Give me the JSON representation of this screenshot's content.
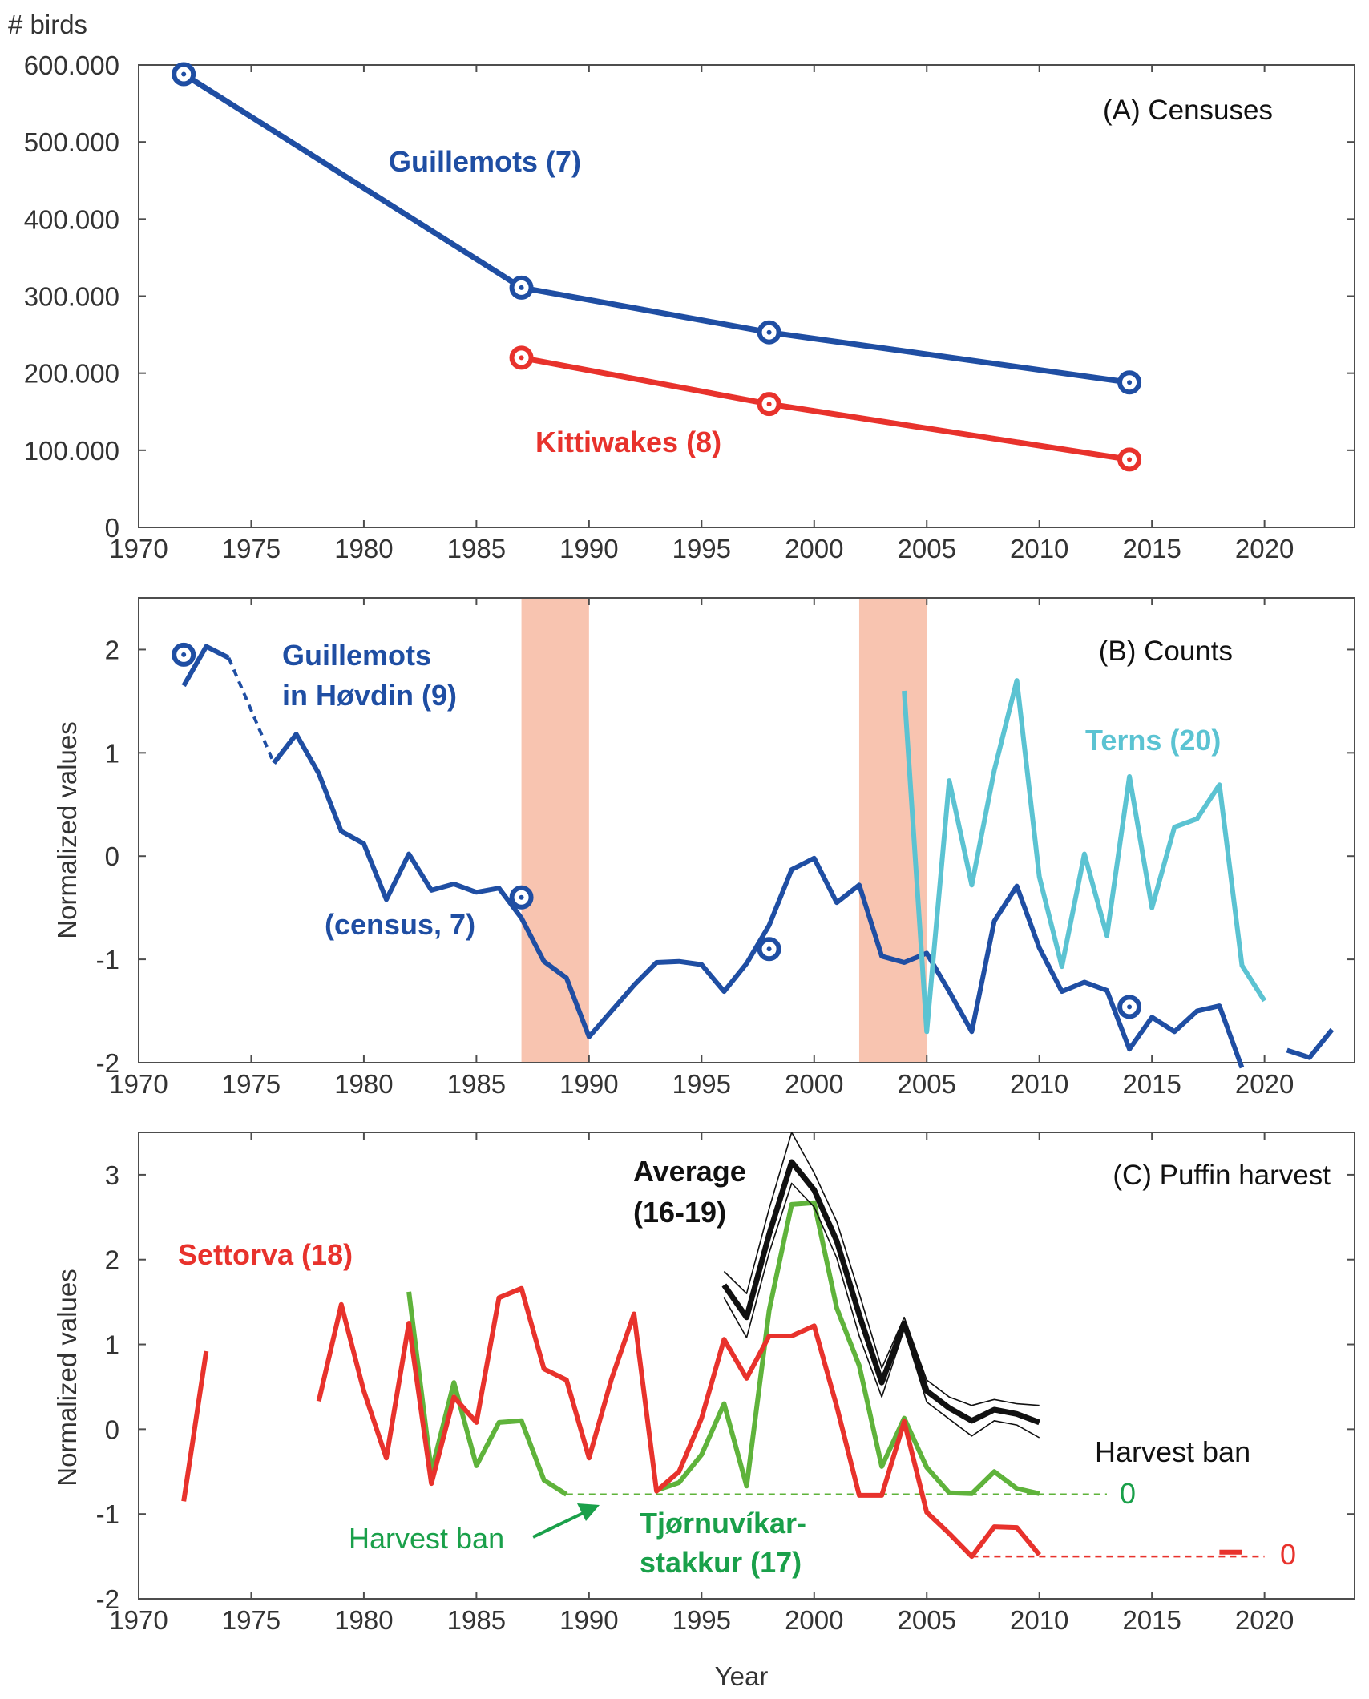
{
  "colors": {
    "guillemots": "#1f4ea3",
    "kittiwakes": "#e8322c",
    "terns": "#5bc3d2",
    "tjornuvikarstakkur": "#5fb33b",
    "settorva": "#e8322c",
    "average": "#111111",
    "ban_zone": "#f8c4b0",
    "tjorn_text": "#1aa04a",
    "ban_arrow": "#1aa04a"
  },
  "chart_data": [
    {
      "type": "line",
      "panel": "A",
      "title": "(A) Censuses",
      "ylabel": "# birds",
      "xlabel": "",
      "xlim": [
        1970,
        2024
      ],
      "ylim": [
        0,
        600000
      ],
      "x_ticks": [
        "1970",
        "1975",
        "1980",
        "1985",
        "1990",
        "1995",
        "2000",
        "2005",
        "2010",
        "2015",
        "2020"
      ],
      "y_ticks": [
        "0",
        "100.000",
        "200.000",
        "300.000",
        "400.000",
        "500.000",
        "600.000"
      ],
      "series": [
        {
          "name": "Guillemots (7)",
          "color_key": "guillemots",
          "x": [
            1972,
            1987,
            1998,
            2014
          ],
          "y": [
            588000,
            311000,
            253000,
            188000
          ],
          "markers": true
        },
        {
          "name": "Kittiwakes (8)",
          "color_key": "kittiwakes",
          "x": [
            1987,
            1998,
            2014
          ],
          "y": [
            220000,
            160000,
            88000
          ],
          "markers": true
        }
      ]
    },
    {
      "type": "line",
      "panel": "B",
      "title": "(B) Counts",
      "ylabel": "Normalized values",
      "xlabel": "",
      "xlim": [
        1970,
        2024
      ],
      "ylim": [
        -2,
        2.5
      ],
      "x_ticks": [
        "1970",
        "1975",
        "1980",
        "1985",
        "1990",
        "1995",
        "2000",
        "2005",
        "2010",
        "2015",
        "2020"
      ],
      "y_ticks": [
        "-2",
        "-1",
        "0",
        "1",
        "2"
      ],
      "shaded_periods": [
        [
          1987,
          1990
        ],
        [
          2002,
          2005
        ]
      ],
      "series": [
        {
          "name": "Guillemots in Høvdin (9)",
          "color_key": "guillemots",
          "segments": [
            {
              "x": [
                1972,
                1973,
                1974
              ],
              "y": [
                1.65,
                2.03,
                1.92
              ]
            },
            {
              "x": [
                1976,
                1977,
                1978,
                1979,
                1980,
                1981,
                1982,
                1983,
                1984,
                1985,
                1986,
                1987,
                1988,
                1989,
                1990,
                1991,
                1992,
                1993,
                1994,
                1995,
                1996,
                1997,
                1998,
                1999,
                2000,
                2001,
                2002,
                2003,
                2004,
                2005,
                2006,
                2007,
                2008,
                2009,
                2010,
                2011,
                2012,
                2013,
                2014,
                2015,
                2016,
                2017,
                2018,
                2019
              ],
              "y": [
                0.9,
                1.18,
                0.8,
                0.24,
                0.12,
                -0.42,
                0.02,
                -0.33,
                -0.27,
                -0.35,
                -0.31,
                -0.6,
                -1.02,
                -1.18,
                -1.75,
                -1.5,
                -1.25,
                -1.03,
                -1.02,
                -1.05,
                -1.31,
                -1.04,
                -0.67,
                -0.13,
                -0.02,
                -0.45,
                -0.28,
                -0.97,
                -1.03,
                -0.94,
                -1.31,
                -1.7,
                -0.63,
                -0.29,
                -0.89,
                -1.31,
                -1.22,
                -1.3,
                -1.87,
                -1.56,
                -1.7,
                -1.5,
                -1.45,
                -2.05
              ]
            },
            {
              "x": [
                2021,
                2022,
                2023
              ],
              "y": [
                -1.88,
                -1.95,
                -1.68
              ]
            }
          ],
          "dashed_bridge": {
            "x": [
              1974,
              1976
            ],
            "y": [
              1.92,
              0.9
            ]
          },
          "markers": {
            "x": [
              1972,
              1987,
              1998,
              2014
            ],
            "y": [
              1.95,
              -0.4,
              -0.9,
              -1.46
            ]
          }
        },
        {
          "name": "Terns (20)",
          "color_key": "terns",
          "x": [
            2004,
            2005,
            2006,
            2007,
            2008,
            2009,
            2010,
            2011,
            2012,
            2013,
            2014,
            2015,
            2016,
            2017,
            2018,
            2019,
            2020
          ],
          "y": [
            1.6,
            -1.7,
            0.73,
            -0.28,
            0.83,
            1.7,
            -0.2,
            -1.07,
            0.02,
            -0.77,
            0.77,
            -0.5,
            0.28,
            0.36,
            0.69,
            -1.06,
            -1.4
          ]
        }
      ]
    },
    {
      "type": "line",
      "panel": "C",
      "title": "(C) Puffin harvest",
      "ylabel": "Normalized values",
      "xlabel": "Year",
      "xlim": [
        1970,
        2024
      ],
      "ylim": [
        -2,
        3.5
      ],
      "x_ticks": [
        "1970",
        "1975",
        "1980",
        "1985",
        "1990",
        "1995",
        "2000",
        "2005",
        "2010",
        "2015",
        "2020"
      ],
      "y_ticks": [
        "-2",
        "-1",
        "0",
        "1",
        "2",
        "3"
      ],
      "series": [
        {
          "name": "Settorva (18)",
          "color_key": "settorva",
          "segments": [
            {
              "x": [
                1972,
                1973
              ],
              "y": [
                -0.85,
                0.92
              ]
            },
            {
              "x": [
                1978,
                1979,
                1980,
                1981,
                1982,
                1983,
                1984,
                1985,
                1986,
                1987,
                1988,
                1989,
                1990,
                1991,
                1992,
                1993,
                1994,
                1995,
                1996,
                1997,
                1998,
                1999,
                2000,
                2001,
                2002,
                2003,
                2004,
                2005,
                2006,
                2007,
                2008,
                2009,
                2010
              ],
              "y": [
                0.33,
                1.47,
                0.45,
                -0.34,
                1.25,
                -0.64,
                0.38,
                0.08,
                1.55,
                1.66,
                0.71,
                0.58,
                -0.34,
                0.59,
                1.36,
                -0.73,
                -0.5,
                0.13,
                1.06,
                0.6,
                1.1,
                1.1,
                1.22,
                0.27,
                -0.78,
                -0.78,
                0.09,
                -0.98,
                -1.23,
                -1.5,
                -1.15,
                -1.16,
                -1.48
              ]
            },
            {
              "x": [
                2018,
                2019
              ],
              "y": [
                -1.45,
                -1.45
              ]
            }
          ],
          "ban_line": {
            "x": [
              2007,
              2020
            ],
            "y": [
              -1.5,
              -1.5
            ],
            "label": "0"
          }
        },
        {
          "name": "Tjørnuvíkar-stakkur (17)",
          "color_key": "tjornuvikarstakkur",
          "x": [
            1982,
            1983,
            1984,
            1985,
            1986,
            1987,
            1988,
            1989,
            1990,
            1991,
            1992,
            1993,
            1994,
            1995,
            1996,
            1997,
            1998,
            1999,
            2000,
            2001,
            2002,
            2003,
            2004,
            2005,
            2006,
            2007,
            2008,
            2009,
            2010
          ],
          "y": [
            1.62,
            -0.5,
            0.55,
            -0.43,
            0.08,
            0.1,
            -0.6,
            -0.77,
            null,
            null,
            null,
            -0.72,
            -0.63,
            -0.3,
            0.3,
            -0.67,
            1.4,
            2.65,
            2.67,
            1.43,
            0.75,
            -0.44,
            0.13,
            -0.45,
            -0.75,
            -0.76,
            -0.5,
            -0.7,
            -0.76
          ],
          "ban_line": {
            "x": [
              1989,
              2013
            ],
            "y": [
              -0.77,
              -0.77
            ],
            "label": "0"
          }
        },
        {
          "name": "Average (16-19)",
          "color_key": "average",
          "x": [
            1996,
            1997,
            1998,
            1999,
            2000,
            2001,
            2002,
            2003,
            2004,
            2005,
            2006,
            2007,
            2008,
            2009,
            2010
          ],
          "y": [
            1.7,
            1.32,
            2.3,
            3.15,
            2.82,
            2.22,
            1.35,
            0.55,
            1.25,
            0.45,
            0.25,
            0.1,
            0.23,
            0.18,
            0.08
          ],
          "upper": [
            1.86,
            1.6,
            2.6,
            3.5,
            3.02,
            2.45,
            1.6,
            0.72,
            1.32,
            0.58,
            0.38,
            0.28,
            0.35,
            0.3,
            0.28
          ],
          "lower": [
            1.55,
            1.08,
            2.08,
            2.9,
            2.62,
            2.02,
            1.1,
            0.38,
            1.18,
            0.32,
            0.12,
            -0.08,
            0.1,
            0.05,
            -0.1
          ]
        }
      ]
    }
  ],
  "labels": {
    "a_guillemots": "Guillemots (7)",
    "a_kittiwakes": "Kittiwakes (8)",
    "b_guillemots_l1": "Guillemots",
    "b_guillemots_l2": "in Høvdin (9)",
    "b_census": "(census, 7)",
    "b_terns": "Terns (20)",
    "c_settorva": "Settorva (18)",
    "c_average_l1": "Average",
    "c_average_l2": "(16-19)",
    "c_harvest_ban_top": "Harvest ban",
    "c_harvest_ban_left": "Harvest ban",
    "c_zero_green": "0",
    "c_zero_red": "0",
    "c_tjorn_l1": "Tjørnuvíkar-",
    "c_tjorn_l2": "stakkur (17)"
  }
}
